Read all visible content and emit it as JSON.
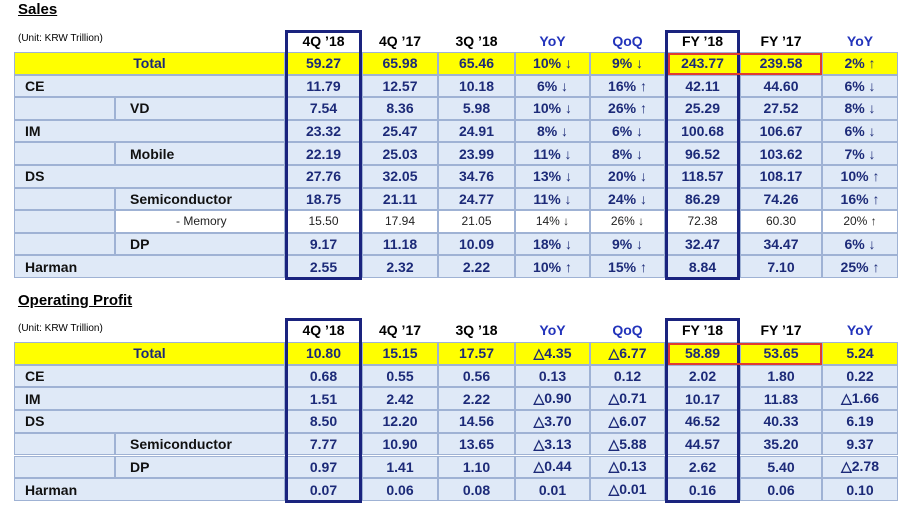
{
  "sections": [
    {
      "title": "Sales",
      "unit": "(Unit: KRW Trillion)",
      "header": [
        "4Q ’18",
        "4Q ’17",
        "3Q ’18",
        "YoY",
        "QoQ",
        "FY ’18",
        "FY ’17",
        "YoY"
      ],
      "rows": [
        {
          "label": "Total",
          "cells": [
            "59.27",
            "65.98",
            "65.46",
            "10% ↓",
            "9% ↓",
            "243.77",
            "239.58",
            "2% ↑"
          ]
        },
        {
          "label": "CE",
          "cells": [
            "11.79",
            "12.57",
            "10.18",
            "6% ↓",
            "16% ↑",
            "42.11",
            "44.60",
            "6% ↓"
          ]
        },
        {
          "label": "VD",
          "cells": [
            "7.54",
            "8.36",
            "5.98",
            "10% ↓",
            "26% ↑",
            "25.29",
            "27.52",
            "8% ↓"
          ]
        },
        {
          "label": "IM",
          "cells": [
            "23.32",
            "25.47",
            "24.91",
            "8% ↓",
            "6% ↓",
            "100.68",
            "106.67",
            "6% ↓"
          ]
        },
        {
          "label": "Mobile",
          "cells": [
            "22.19",
            "25.03",
            "23.99",
            "11% ↓",
            "8% ↓",
            "96.52",
            "103.62",
            "7% ↓"
          ]
        },
        {
          "label": "DS",
          "cells": [
            "27.76",
            "32.05",
            "34.76",
            "13% ↓",
            "20% ↓",
            "118.57",
            "108.17",
            "10% ↑"
          ]
        },
        {
          "label": "Semiconductor",
          "cells": [
            "18.75",
            "21.11",
            "24.77",
            "11% ↓",
            "24% ↓",
            "86.29",
            "74.26",
            "16% ↑"
          ]
        },
        {
          "label": "- Memory",
          "cells": [
            "15.50",
            "17.94",
            "21.05",
            "14% ↓",
            "26% ↓",
            "72.38",
            "60.30",
            "20% ↑"
          ]
        },
        {
          "label": "DP",
          "cells": [
            "9.17",
            "11.18",
            "10.09",
            "18% ↓",
            "9% ↓",
            "32.47",
            "34.47",
            "6% ↓"
          ]
        },
        {
          "label": "Harman",
          "cells": [
            "2.55",
            "2.32",
            "2.22",
            "10% ↑",
            "15% ↑",
            "8.84",
            "7.10",
            "25% ↑"
          ]
        }
      ]
    },
    {
      "title": "Operating Profit",
      "unit": "(Unit: KRW Trillion)",
      "header": [
        "4Q ’18",
        "4Q ’17",
        "3Q ’18",
        "YoY",
        "QoQ",
        "FY ’18",
        "FY ’17",
        "YoY"
      ],
      "rows": [
        {
          "label": "Total",
          "cells": [
            "10.80",
            "15.15",
            "17.57",
            "△4.35",
            "△6.77",
            "58.89",
            "53.65",
            "5.24"
          ]
        },
        {
          "label": "CE",
          "cells": [
            "0.68",
            "0.55",
            "0.56",
            "0.13",
            "0.12",
            "2.02",
            "1.80",
            "0.22"
          ]
        },
        {
          "label": "IM",
          "cells": [
            "1.51",
            "2.42",
            "2.22",
            "△0.90",
            "△0.71",
            "10.17",
            "11.83",
            "△1.66"
          ]
        },
        {
          "label": "DS",
          "cells": [
            "8.50",
            "12.20",
            "14.56",
            "△3.70",
            "△6.07",
            "46.52",
            "40.33",
            "6.19"
          ]
        },
        {
          "label": "Semiconductor",
          "cells": [
            "7.77",
            "10.90",
            "13.65",
            "△3.13",
            "△5.88",
            "44.57",
            "35.20",
            "9.37"
          ]
        },
        {
          "label": "DP",
          "cells": [
            "0.97",
            "1.41",
            "1.10",
            "△0.44",
            "△0.13",
            "2.62",
            "5.40",
            "△2.78"
          ]
        },
        {
          "label": "Harman",
          "cells": [
            "0.07",
            "0.06",
            "0.08",
            "0.01",
            "△0.01",
            "0.16",
            "0.06",
            "0.10"
          ]
        }
      ]
    }
  ]
}
